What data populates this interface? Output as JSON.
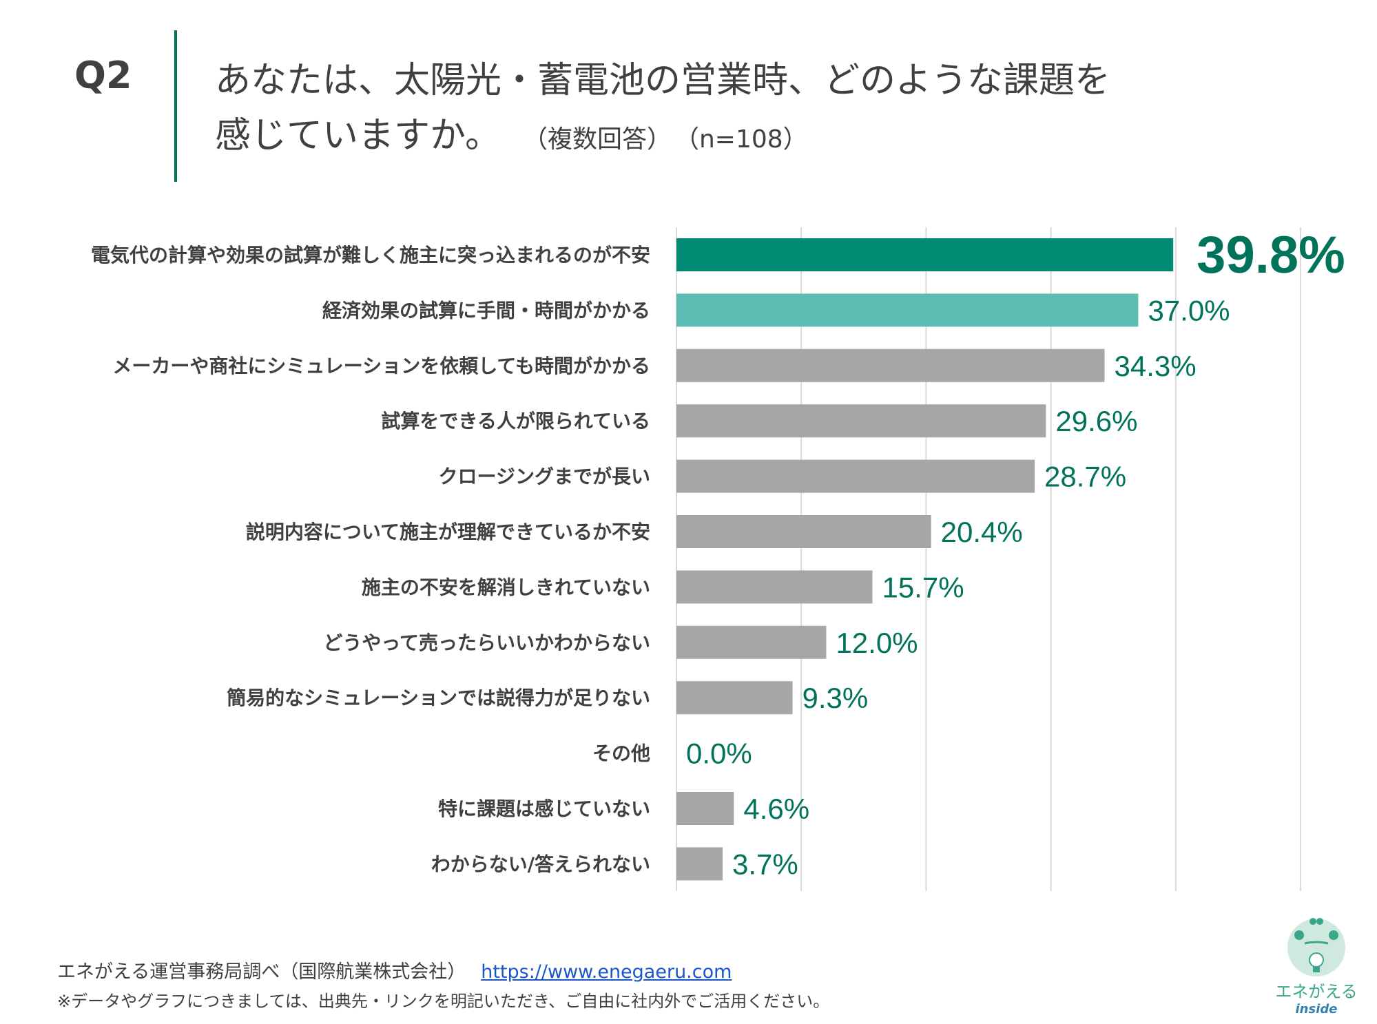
{
  "header": {
    "question_no": "Q2",
    "title_line1": "あなたは、太陽光・蓄電池の営業時、どのような課題を",
    "title_line2": "感じていますか。",
    "note": "（複数回答）",
    "sample": "（n=108）"
  },
  "chart_data": {
    "type": "bar",
    "orientation": "horizontal",
    "categories": [
      "電気代の計算や効果の試算が難しく施主に突っ込まれるのが不安",
      "経済効果の試算に手間・時間がかかる",
      "メーカーや商社にシミュレーションを依頼しても時間がかかる",
      "試算をできる人が限られている",
      "クロージングまでが長い",
      "説明内容について施主が理解できているか不安",
      "施主の不安を解消しきれていない",
      "どうやって売ったらいいかわからない",
      "簡易的なシミュレーションでは説得力が足りない",
      "その他",
      "特に課題は感じていない",
      "わからない/答えられない"
    ],
    "values": [
      39.8,
      37.0,
      34.3,
      29.6,
      28.7,
      20.4,
      15.7,
      12.0,
      9.3,
      0.0,
      4.6,
      3.7
    ],
    "value_labels": [
      "39.8%",
      "37.0%",
      "34.3%",
      "29.6%",
      "28.7%",
      "20.4%",
      "15.7%",
      "12.0%",
      "9.3%",
      "0.0%",
      "4.6%",
      "3.7%"
    ],
    "xlim": [
      0,
      50
    ],
    "grid": true,
    "unit": "%",
    "colors": {
      "first": "#008a72",
      "second": "#5dbdb3",
      "rest": "#a6a6a6",
      "label": "#00735a"
    }
  },
  "footer": {
    "source": "エネがえる運営事務局調べ（国際航業株式会社）",
    "link": "https://www.enegaeru.com",
    "note": "※データやグラフにつきましては、出典先・リンクを明記いただき、ご自由に社内外でご活用ください。"
  },
  "logo": {
    "text": "エネがえる",
    "sub": "inside"
  }
}
